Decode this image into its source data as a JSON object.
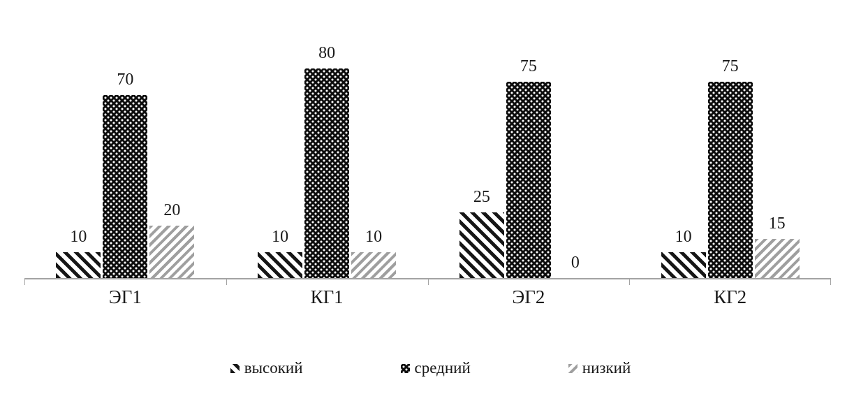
{
  "chart_data": {
    "type": "bar",
    "categories": [
      "ЭГ1",
      "КГ1",
      "ЭГ2",
      "КГ2"
    ],
    "series": [
      {
        "name": "высокий",
        "pattern": "diagonal-backslash-dark",
        "values": [
          10,
          10,
          25,
          10
        ]
      },
      {
        "name": "средний",
        "pattern": "dotted-black",
        "values": [
          70,
          80,
          75,
          75
        ]
      },
      {
        "name": "низкий",
        "pattern": "diagonal-slash-gray",
        "values": [
          20,
          10,
          0,
          15
        ]
      }
    ],
    "title": "",
    "xlabel": "",
    "ylabel": "",
    "ylim": [
      0,
      80
    ],
    "grid": false,
    "legend_position": "bottom",
    "data_labels": true
  },
  "colors": {
    "background": "#ffffff",
    "text": "#1a1a1a",
    "axis": "#a3a3a3",
    "bar_dark": "#0d0d0d",
    "bar_gray": "#9f9f9f"
  }
}
